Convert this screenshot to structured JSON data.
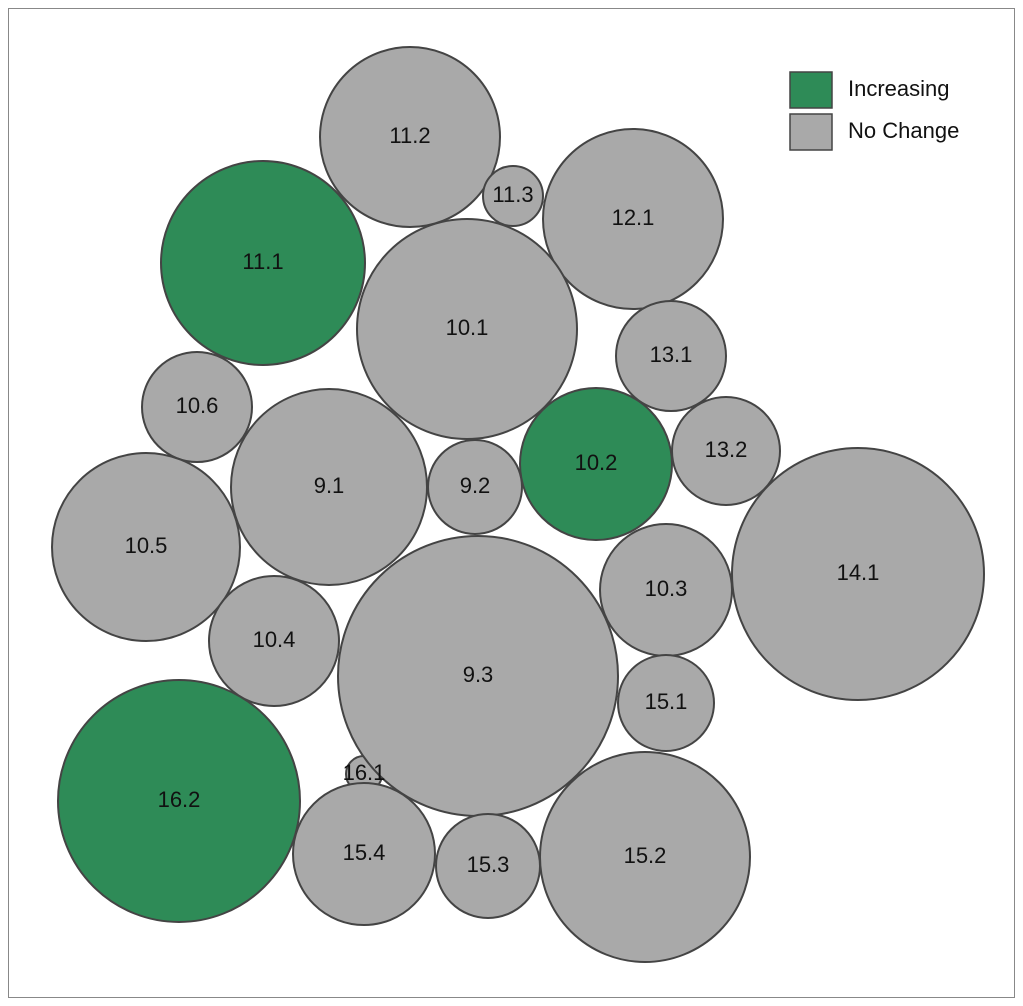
{
  "chart_data": {
    "type": "packed-bubble",
    "legend": "top-right",
    "series": [
      {
        "name": "Increasing",
        "color": "#2e8b57",
        "categories": [
          "11.1",
          "10.2",
          "16.2"
        ],
        "values": [
          102,
          76,
          121
        ]
      },
      {
        "name": "No Change",
        "color": "#a9a9a9",
        "categories": [
          "16.1",
          "11.2",
          "11.3",
          "12.1",
          "10.1",
          "13.1",
          "10.6",
          "9.1",
          "9.2",
          "13.2",
          "10.5",
          "14.1",
          "10.3",
          "10.4",
          "9.3",
          "15.1",
          "15.4",
          "15.3",
          "15.2"
        ],
        "values": [
          18,
          90,
          30,
          90,
          110,
          55,
          55,
          98,
          47,
          54,
          94,
          126,
          66,
          65,
          140,
          48,
          71,
          52,
          105
        ]
      }
    ]
  }
}
